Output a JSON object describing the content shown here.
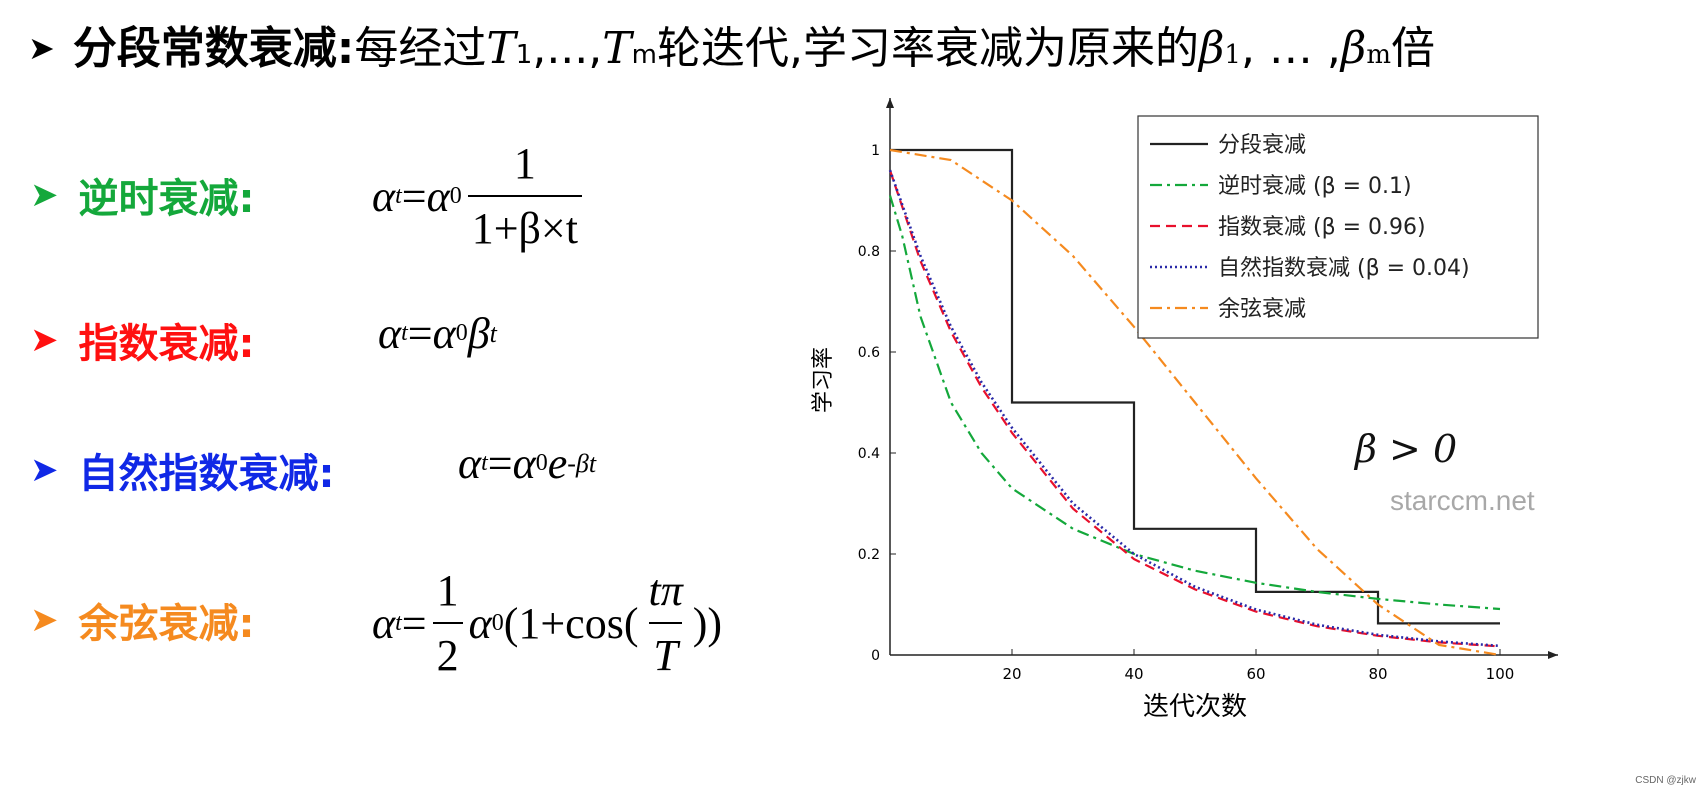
{
  "header": {
    "arrow": "➤",
    "title": "分段常数衰减:",
    "text1": "每经过",
    "T1": "T",
    "T1sub": "1",
    "dots": ",...,",
    "Tm": "T",
    "Tmsub": "m",
    "text2": "轮迭代,学习率衰减为原来的",
    "b1": "β",
    "b1sub": "1",
    "dots2": ", … ,",
    "bm": "β",
    "bmsub": "m",
    "text3": "倍"
  },
  "methods": [
    {
      "arrow": "➤",
      "label": "逆时衰减:",
      "color": "#14a83b"
    },
    {
      "arrow": "➤",
      "label": "指数衰减:",
      "color": "#ff1010"
    },
    {
      "arrow": "➤",
      "label": "自然指数衰减:",
      "color": "#1028e6"
    },
    {
      "arrow": "➤",
      "label": "余弦衰减:",
      "color": "#f58a1f"
    }
  ],
  "formulas": {
    "inverse": {
      "lhs": "α",
      "t": "t",
      "eq": "=",
      "a0": "α",
      "zero": "0",
      "num": "1",
      "den": "1+β×t"
    },
    "exp": {
      "lhs": "α",
      "t": "t",
      "eq": "=",
      "a0": "α",
      "zero": "0",
      "beta": "β",
      "sup": "t"
    },
    "natexp": {
      "lhs": "α",
      "t": "t",
      "eq": "=",
      "a0": "α",
      "zero": "0",
      "e": "e",
      "sup": "-βt"
    },
    "cosine": {
      "lhs": "α",
      "t": "t",
      "eq": "=",
      "half_num": "1",
      "half_den": "2",
      "a0": "α",
      "zero": "0",
      "open": "(1+cos(",
      "tpi": "tπ",
      "T": "T",
      "close": "))"
    }
  },
  "annotation": "β > 0",
  "watermark": "starccm.net",
  "csdn": "CSDN @zjkw",
  "chart_data": {
    "type": "line",
    "xlabel": "迭代次数",
    "ylabel": "学习率",
    "xlim": [
      0,
      100
    ],
    "ylim": [
      0,
      1.05
    ],
    "xticks": [
      20,
      40,
      60,
      80,
      100
    ],
    "yticks": [
      0,
      0.2,
      0.4,
      0.6,
      0.8,
      1
    ],
    "ytick_labels": [
      "0",
      "0.2",
      "0.4",
      "0.6",
      "0.8",
      "1"
    ],
    "legend_position": "top-right",
    "series": [
      {
        "name": "分段衰减",
        "color": "#222222",
        "style": "solid",
        "x": [
          0,
          20,
          20,
          40,
          40,
          60,
          60,
          80,
          80,
          100
        ],
        "y": [
          1,
          1,
          0.5,
          0.5,
          0.25,
          0.25,
          0.125,
          0.125,
          0.0625,
          0.0625
        ]
      },
      {
        "name": "逆时衰减 (β = 0.1)",
        "color": "#14a83b",
        "style": "dashdot",
        "x": [
          0,
          2,
          5,
          10,
          15,
          20,
          30,
          40,
          50,
          60,
          70,
          80,
          90,
          100
        ],
        "y": [
          0.91,
          0.83,
          0.67,
          0.5,
          0.4,
          0.33,
          0.25,
          0.2,
          0.167,
          0.143,
          0.125,
          0.111,
          0.1,
          0.091
        ]
      },
      {
        "name": "指数衰减 (β = 0.96)",
        "color": "#e8102c",
        "style": "dashed",
        "x": [
          0,
          5,
          10,
          15,
          20,
          30,
          40,
          50,
          60,
          70,
          80,
          90,
          100
        ],
        "y": [
          0.96,
          0.78,
          0.64,
          0.53,
          0.44,
          0.29,
          0.19,
          0.13,
          0.086,
          0.057,
          0.038,
          0.025,
          0.017
        ]
      },
      {
        "name": "自然指数衰减 (β = 0.04)",
        "color": "#2a2aa8",
        "style": "dotted",
        "x": [
          0,
          5,
          10,
          15,
          20,
          30,
          40,
          50,
          60,
          70,
          80,
          90,
          100
        ],
        "y": [
          0.96,
          0.79,
          0.65,
          0.54,
          0.45,
          0.3,
          0.2,
          0.135,
          0.09,
          0.06,
          0.04,
          0.027,
          0.018
        ]
      },
      {
        "name": "余弦衰减",
        "color": "#f58a1f",
        "style": "dashdot",
        "x": [
          0,
          10,
          20,
          30,
          40,
          50,
          60,
          70,
          80,
          90,
          100
        ],
        "y": [
          1,
          0.98,
          0.9,
          0.79,
          0.65,
          0.5,
          0.35,
          0.21,
          0.1,
          0.02,
          0
        ]
      }
    ]
  }
}
